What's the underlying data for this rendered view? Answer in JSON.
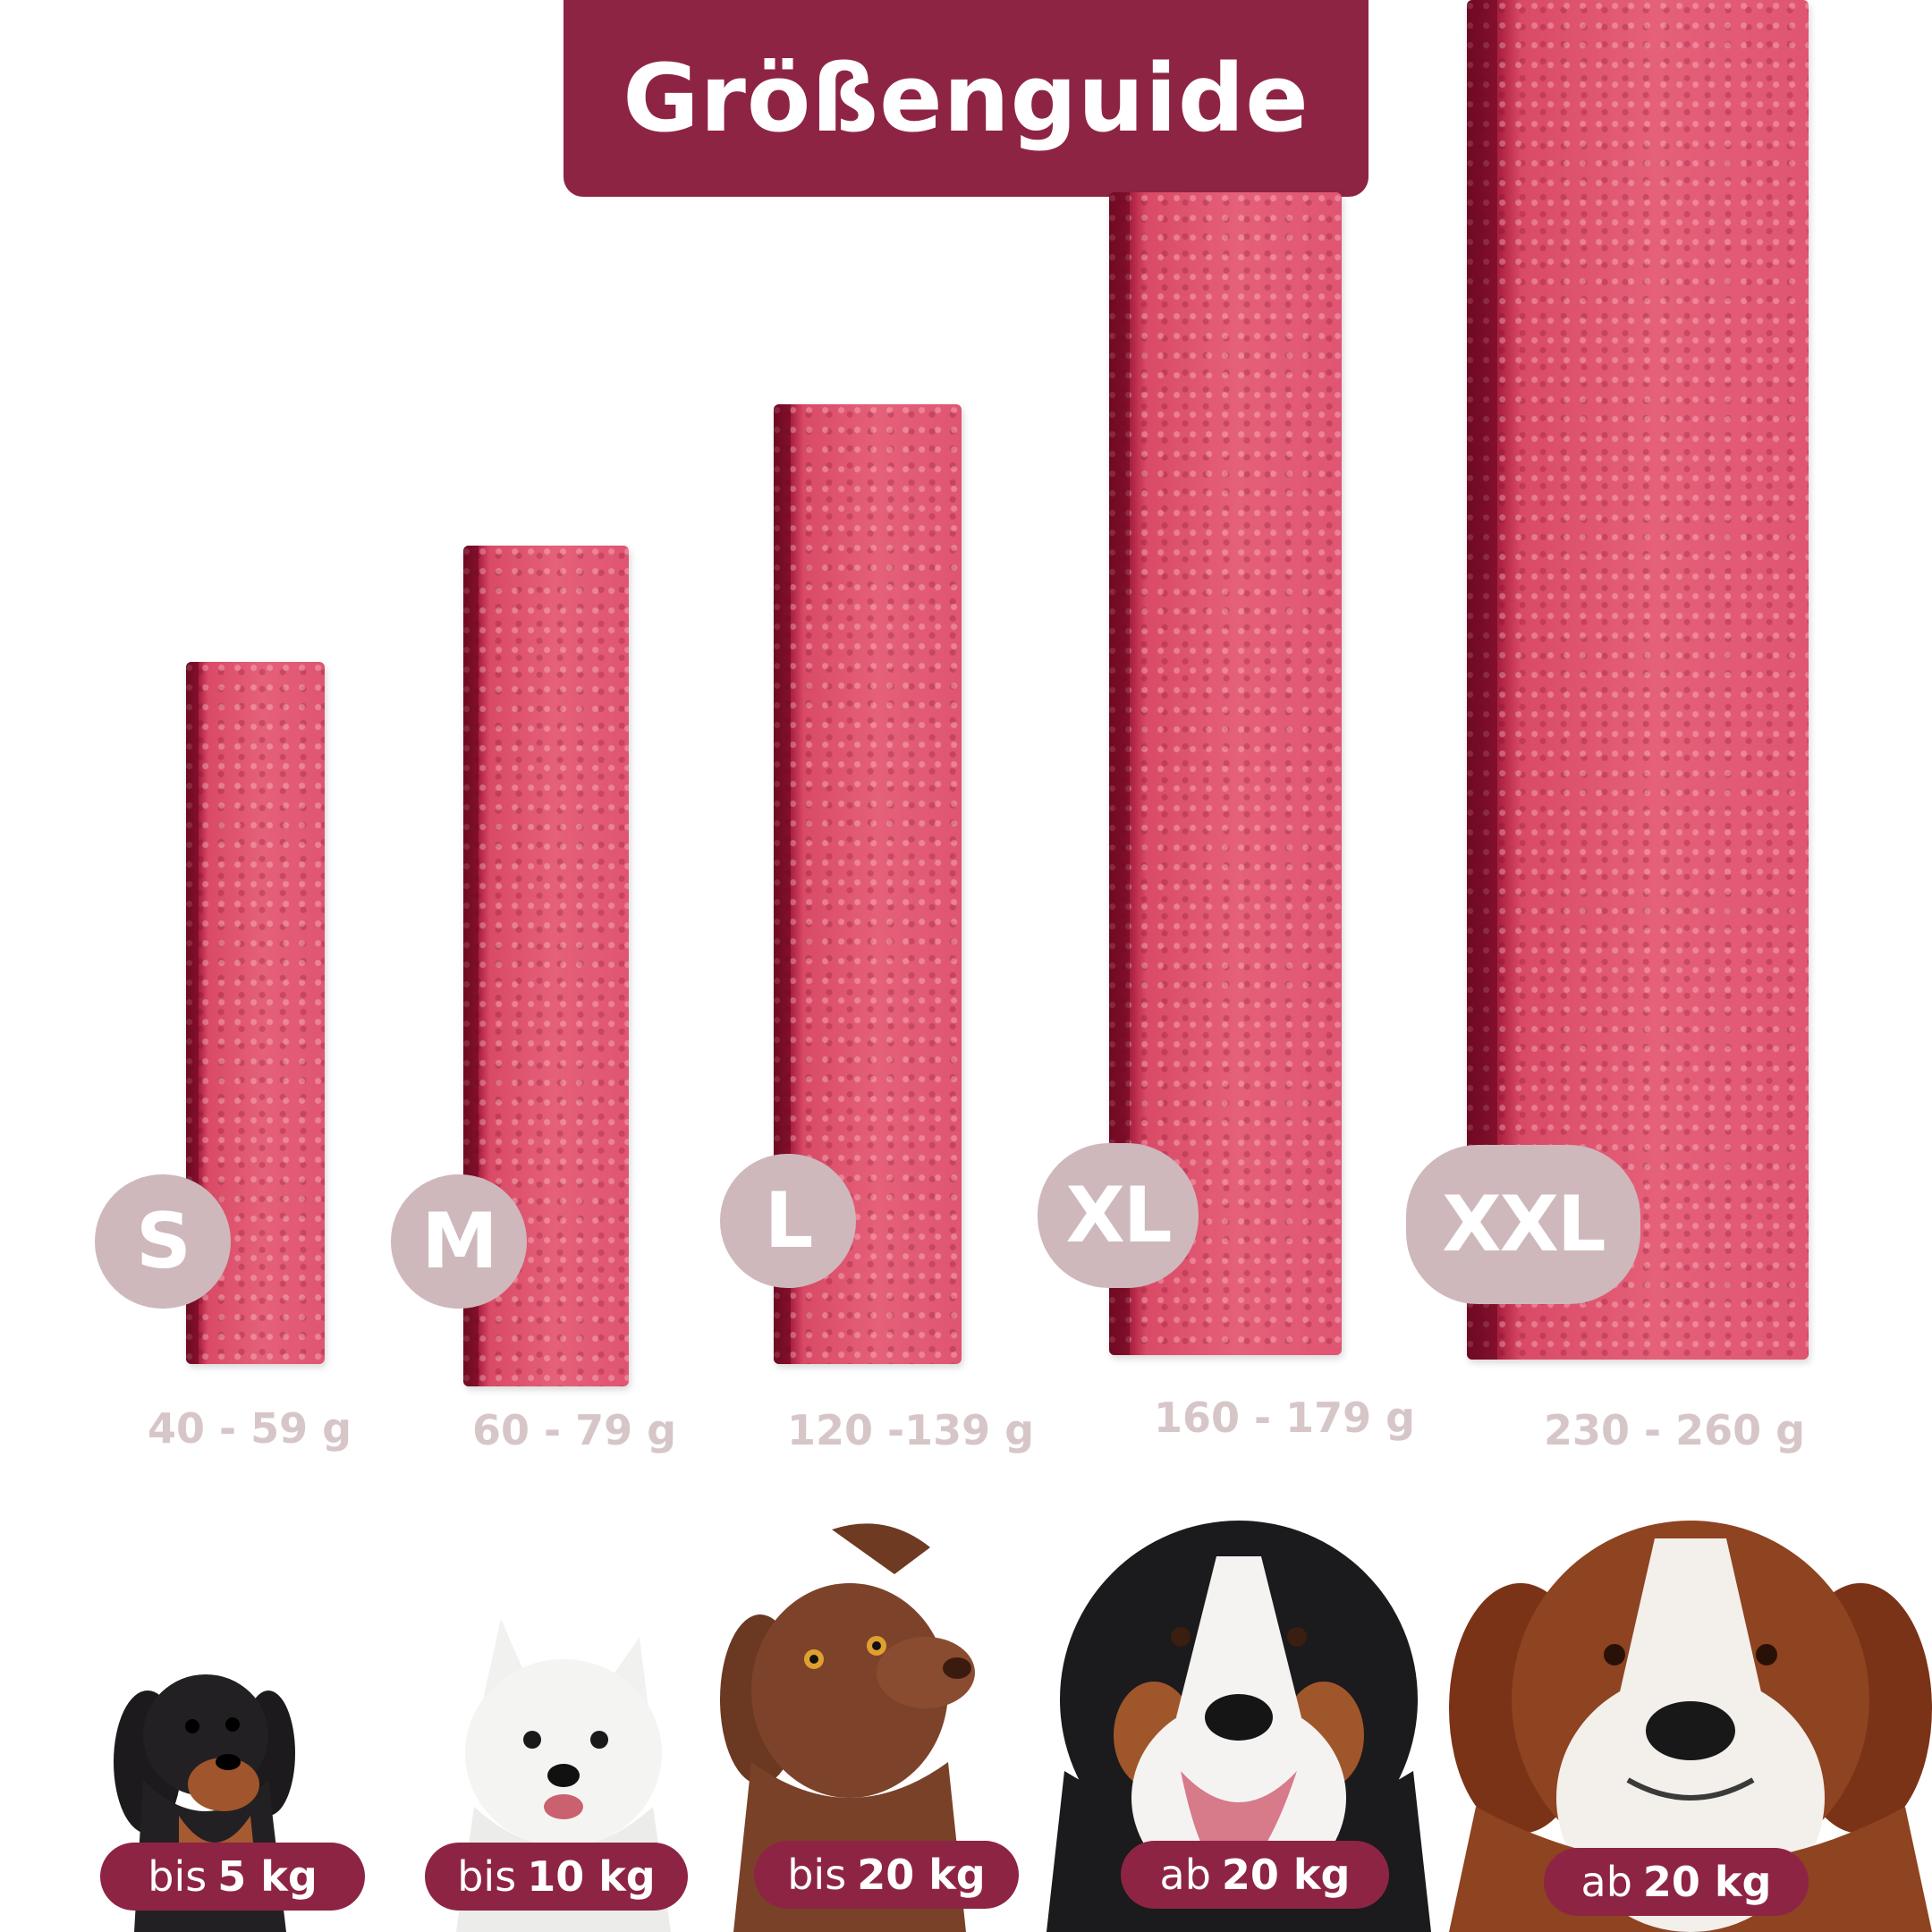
{
  "title": "Größenguide",
  "colors": {
    "brand": "#8e2444",
    "badge": "#ceb8bb",
    "weight_text": "#d7c6c8",
    "stick": "#e56079"
  },
  "sizes": [
    {
      "label": "S",
      "weight": "40 - 59 g",
      "dog_prefix": "bis",
      "dog_weight": "5 kg",
      "dog": "dachshund"
    },
    {
      "label": "M",
      "weight": "60 - 79 g",
      "dog_prefix": "bis",
      "dog_weight": "10 kg",
      "dog": "west-highland-terrier"
    },
    {
      "label": "L",
      "weight": "120 -139 g",
      "dog_prefix": "bis",
      "dog_weight": "20 kg",
      "dog": "brown-labrador"
    },
    {
      "label": "XL",
      "weight": "160 - 179 g",
      "dog_prefix": "ab",
      "dog_weight": "20 kg",
      "dog": "bernese-mountain-dog"
    },
    {
      "label": "XXL",
      "weight": "230 - 260 g",
      "dog_prefix": "ab",
      "dog_weight": "20 kg",
      "dog": "saint-bernard"
    }
  ]
}
